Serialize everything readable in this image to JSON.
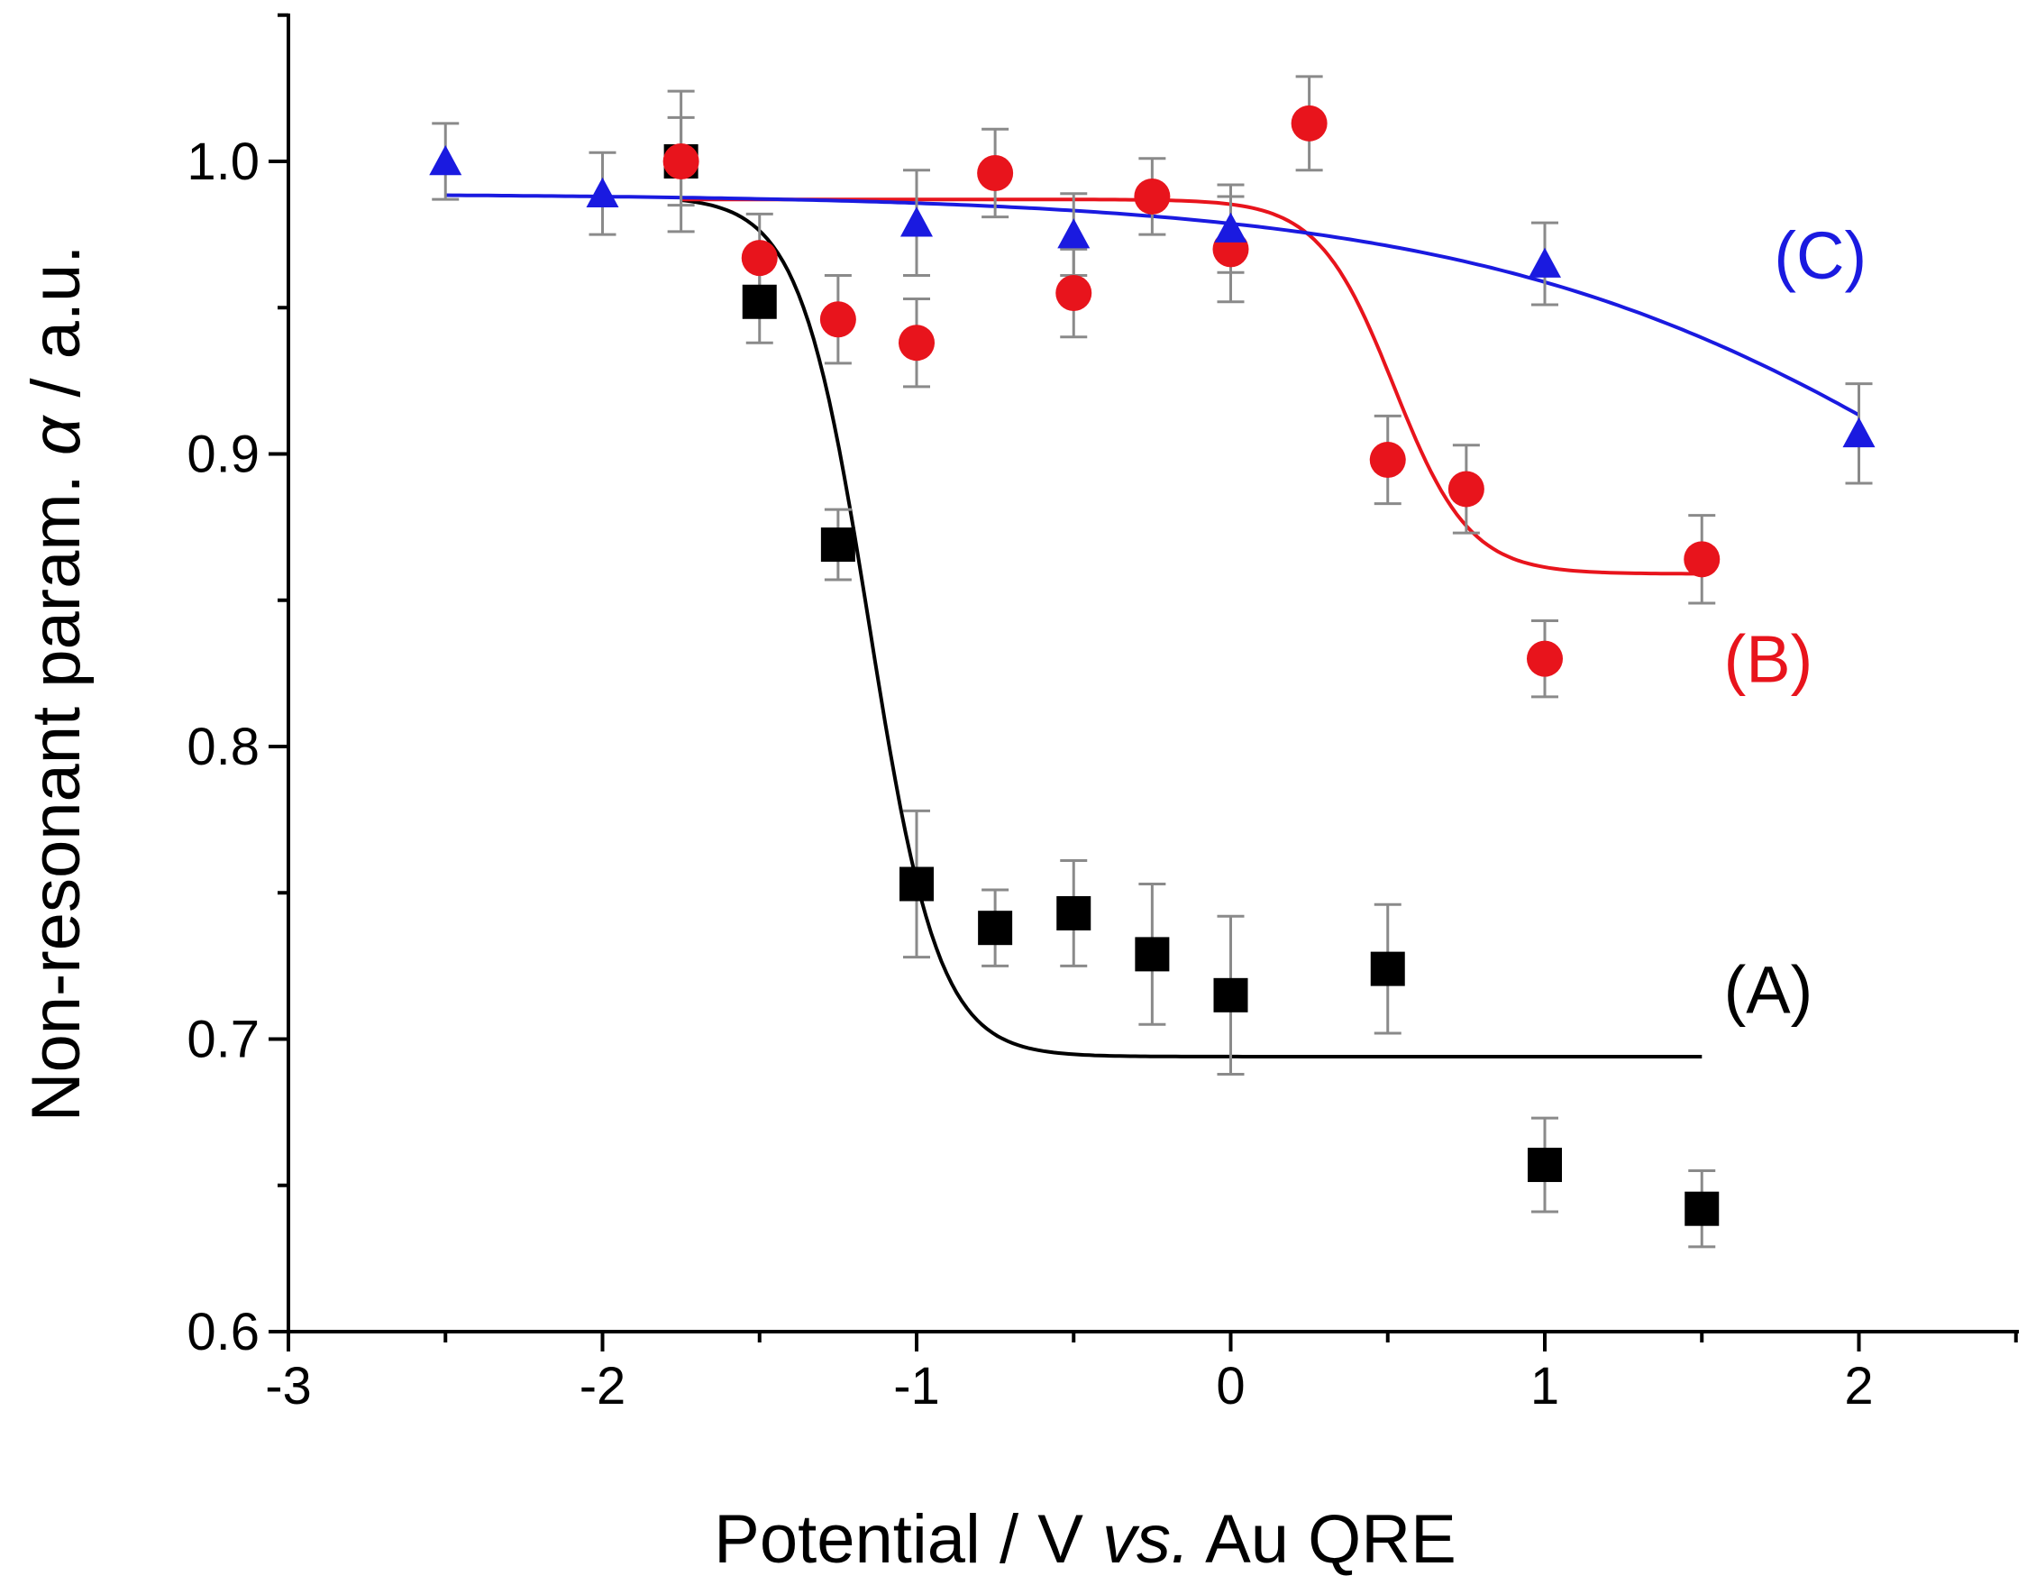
{
  "chart_data": {
    "type": "scatter",
    "title": "",
    "xlabel_parts": [
      {
        "text": "Potential / V ",
        "italic": false
      },
      {
        "text": "vs.",
        "italic": true
      },
      {
        "text": " Au QRE",
        "italic": false
      }
    ],
    "ylabel_parts": [
      {
        "text": "Non-resonant param. ",
        "italic": false
      },
      {
        "text": "α",
        "italic": true
      },
      {
        "text": " / a.u.",
        "italic": false
      }
    ],
    "xlim": [
      -3,
      2.5
    ],
    "ylim": [
      0.6,
      1.05
    ],
    "x_ticks": [
      -3,
      -2,
      -1,
      0,
      1,
      2
    ],
    "x_tick_labels": [
      "-3",
      "-2",
      "-1",
      "0",
      "1",
      "2"
    ],
    "y_ticks": [
      0.6,
      0.7,
      0.8,
      0.9,
      1.0
    ],
    "y_tick_labels": [
      "0.6",
      "0.7",
      "0.8",
      "0.9",
      "1.0"
    ],
    "grid": false,
    "series": [
      {
        "name": "(A)",
        "color": "#000000",
        "marker": "square",
        "label_pos": [
          1.57,
          0.717
        ],
        "points": [
          {
            "x": -1.75,
            "y": 1.0,
            "err": 0.024
          },
          {
            "x": -1.5,
            "y": 0.952,
            "err": 0.014
          },
          {
            "x": -1.25,
            "y": 0.869,
            "err": 0.012
          },
          {
            "x": -1.0,
            "y": 0.753,
            "err": 0.025
          },
          {
            "x": -0.75,
            "y": 0.738,
            "err": 0.013
          },
          {
            "x": -0.5,
            "y": 0.743,
            "err": 0.018
          },
          {
            "x": -0.25,
            "y": 0.729,
            "err": 0.024
          },
          {
            "x": 0.0,
            "y": 0.715,
            "err": 0.027
          },
          {
            "x": 0.5,
            "y": 0.724,
            "err": 0.022
          },
          {
            "x": 1.0,
            "y": 0.657,
            "err": 0.016
          },
          {
            "x": 1.5,
            "y": 0.642,
            "err": 0.013
          }
        ],
        "fit": {
          "x_start": -1.75,
          "x_end": 1.5,
          "upper": 0.988,
          "lower": 0.694,
          "x0": -1.15,
          "width": 0.11
        }
      },
      {
        "name": "(B)",
        "color": "#e8141c",
        "marker": "circle",
        "label_pos": [
          1.57,
          0.83
        ],
        "points": [
          {
            "x": -1.75,
            "y": 1.0,
            "err": 0.015
          },
          {
            "x": -1.5,
            "y": 0.967,
            "err": 0.015
          },
          {
            "x": -1.25,
            "y": 0.946,
            "err": 0.015
          },
          {
            "x": -1.0,
            "y": 0.938,
            "err": 0.015
          },
          {
            "x": -0.75,
            "y": 0.996,
            "err": 0.015
          },
          {
            "x": -0.5,
            "y": 0.955,
            "err": 0.015
          },
          {
            "x": -0.25,
            "y": 0.988,
            "err": 0.013
          },
          {
            "x": 0.0,
            "y": 0.97,
            "err": 0.018
          },
          {
            "x": 0.25,
            "y": 1.013,
            "err": 0.016
          },
          {
            "x": 0.5,
            "y": 0.898,
            "err": 0.015
          },
          {
            "x": 0.75,
            "y": 0.888,
            "err": 0.015
          },
          {
            "x": 1.0,
            "y": 0.83,
            "err": 0.013
          },
          {
            "x": 1.5,
            "y": 0.864,
            "err": 0.015
          }
        ],
        "fit": {
          "x_start": -1.75,
          "x_end": 1.5,
          "upper": 0.987,
          "lower": 0.859,
          "x0": 0.52,
          "width": 0.12
        }
      },
      {
        "name": "(C)",
        "color": "#1a1ae0",
        "marker": "triangle",
        "label_pos": [
          1.73,
          0.968
        ],
        "points": [
          {
            "x": -2.5,
            "y": 1.0,
            "err": 0.013
          },
          {
            "x": -2.0,
            "y": 0.989,
            "err": 0.014
          },
          {
            "x": -1.0,
            "y": 0.979,
            "err": 0.018
          },
          {
            "x": -0.5,
            "y": 0.975,
            "err": 0.014
          },
          {
            "x": 0.0,
            "y": 0.977,
            "err": 0.015
          },
          {
            "x": 1.0,
            "y": 0.965,
            "err": 0.014
          },
          {
            "x": 2.0,
            "y": 0.907,
            "err": 0.017
          }
        ],
        "fit": {
          "x_start": -2.5,
          "x_end": 2.0,
          "upper": 0.989,
          "lower": 0.76,
          "x0": 2.6,
          "width": 0.85
        }
      }
    ]
  }
}
